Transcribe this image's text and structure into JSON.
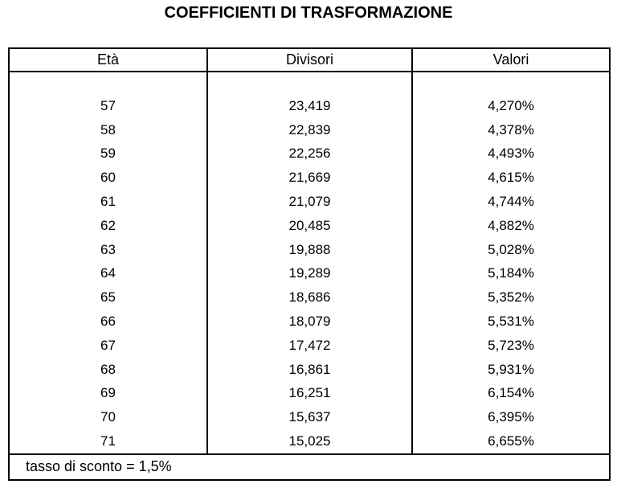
{
  "title": "COEFFICIENTI DI TRASFORMAZIONE",
  "table": {
    "headers": [
      "Età",
      "Divisori",
      "Valori"
    ],
    "rows": [
      {
        "eta": "57",
        "divisori": "23,419",
        "valori": "4,270%"
      },
      {
        "eta": "58",
        "divisori": "22,839",
        "valori": "4,378%"
      },
      {
        "eta": "59",
        "divisori": "22,256",
        "valori": "4,493%"
      },
      {
        "eta": "60",
        "divisori": "21,669",
        "valori": "4,615%"
      },
      {
        "eta": "61",
        "divisori": "21,079",
        "valori": "4,744%"
      },
      {
        "eta": "62",
        "divisori": "20,485",
        "valori": "4,882%"
      },
      {
        "eta": "63",
        "divisori": "19,888",
        "valori": "5,028%"
      },
      {
        "eta": "64",
        "divisori": "19,289",
        "valori": "5,184%"
      },
      {
        "eta": "65",
        "divisori": "18,686",
        "valori": "5,352%"
      },
      {
        "eta": "66",
        "divisori": "18,079",
        "valori": "5,531%"
      },
      {
        "eta": "67",
        "divisori": "17,472",
        "valori": "5,723%"
      },
      {
        "eta": "68",
        "divisori": "16,861",
        "valori": "5,931%"
      },
      {
        "eta": "69",
        "divisori": "16,251",
        "valori": "6,154%"
      },
      {
        "eta": "70",
        "divisori": "15,637",
        "valori": "6,395%"
      },
      {
        "eta": "71",
        "divisori": "15,025",
        "valori": "6,655%"
      }
    ],
    "footer": "tasso di sconto = 1,5%"
  },
  "colors": {
    "text": "#000000",
    "border": "#000000",
    "background": "#ffffff"
  }
}
